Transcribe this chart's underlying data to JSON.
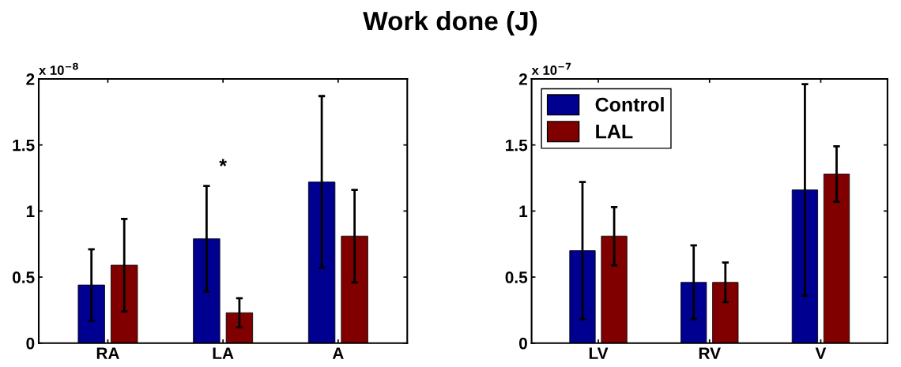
{
  "chart_data": [
    {
      "type": "bar",
      "title": "Work done (J)",
      "categories": [
        "RA",
        "LA",
        "A"
      ],
      "series": [
        {
          "color": "#000090",
          "values": [
            0.44,
            0.79,
            1.22
          ],
          "errors": [
            0.27,
            0.4,
            0.65
          ]
        },
        {
          "color": "#800000",
          "values": [
            0.59,
            0.23,
            0.81
          ],
          "errors": [
            0.35,
            0.11,
            0.35
          ]
        }
      ],
      "ylim": [
        0,
        2
      ],
      "yticks": [
        0,
        0.5,
        1,
        1.5,
        2
      ],
      "grid": false,
      "legend": false,
      "annotations": [
        "x 10$^{−8}$",
        "*"
      ]
    },
    {
      "type": "bar",
      "categories": [
        "LV",
        "RV",
        "V"
      ],
      "series": [
        {
          "name": "Control",
          "color": "#000090",
          "values": [
            0.7,
            0.46,
            1.16
          ],
          "errors": [
            0.52,
            0.28,
            0.8
          ]
        },
        {
          "name": "LAL",
          "color": "#800000",
          "values": [
            0.81,
            0.46,
            1.28
          ],
          "errors": [
            0.22,
            0.15,
            0.21
          ]
        }
      ],
      "ylim": [
        0,
        2
      ],
      "yticks": [
        0,
        0.5,
        1,
        1.5,
        2
      ],
      "grid": false,
      "legend": "top left",
      "annotations": [
        "x 10$^{−7}$"
      ]
    }
  ]
}
